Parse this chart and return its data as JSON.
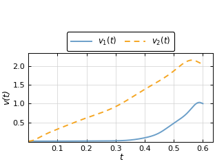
{
  "xlabel": "t",
  "ylabel": "v(t)",
  "xlim": [
    0.0,
    0.635
  ],
  "ylim": [
    -0.02,
    2.35
  ],
  "xticks": [
    0.1,
    0.2,
    0.3,
    0.4,
    0.5,
    0.6
  ],
  "yticks": [
    0.5,
    1.0,
    1.5,
    2.0
  ],
  "color_v1": "#6b9fc9",
  "color_v2": "#f5a623",
  "legend_v1": "$v_1(t)$",
  "legend_v2": "$v_2(t)$",
  "figsize": [
    3.12,
    2.38
  ],
  "dpi": 100,
  "background": "#ffffff",
  "grid_color": "#d0d0d0",
  "line_width": 1.4,
  "v1_alpha": 1.5,
  "v2_alpha": 0.5,
  "v1_A": 28.0,
  "v2_A": 3.65,
  "v2_pow": 0.62
}
